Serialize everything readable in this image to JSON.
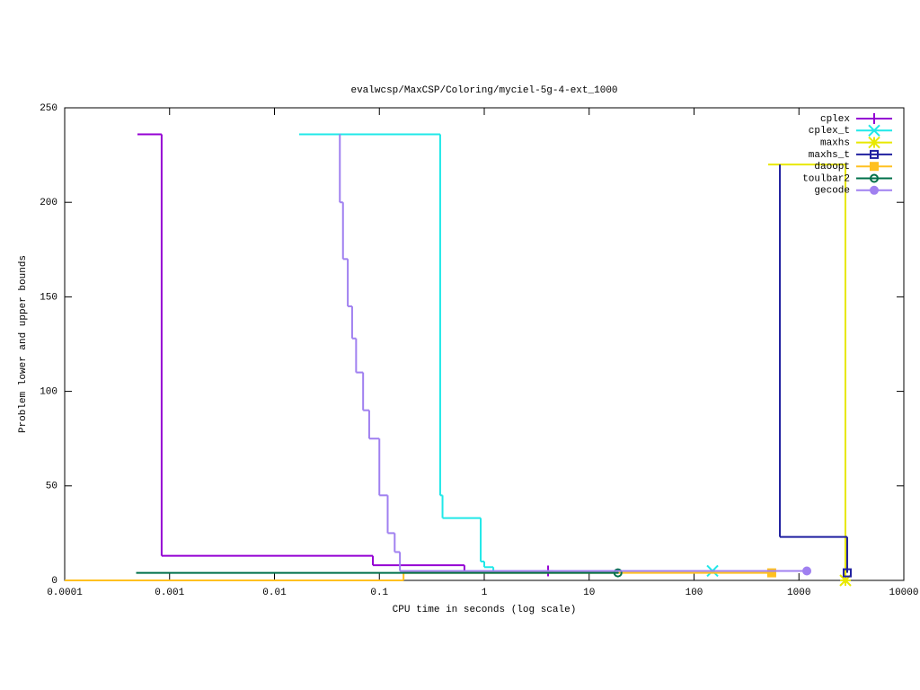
{
  "chart_data": {
    "type": "line",
    "drawstyle": "steps",
    "xscale": "log",
    "title": "evalwcsp/MaxCSP/Coloring/myciel-5g-4-ext_1000",
    "xlabel": "CPU time in seconds (log scale)",
    "ylabel": "Problem lower and upper bounds",
    "xlim": [
      0.0001,
      10000
    ],
    "xticks": [
      0.0001,
      0.001,
      0.01,
      0.1,
      1,
      10,
      100,
      1000,
      10000
    ],
    "ylim": [
      0,
      250
    ],
    "yticks": [
      0,
      50,
      100,
      150,
      200,
      250
    ],
    "legend": "upper right",
    "series": [
      {
        "name": "cplex",
        "color": "#9400d3",
        "marker": "plus",
        "x": [
          0.000494,
          0.00084,
          0.0867,
          0.647,
          4.06
        ],
        "values": [
          236,
          13,
          8,
          5,
          5
        ]
      },
      {
        "name": "cplex_t",
        "color": "#20e8e8",
        "marker": "cross",
        "x": [
          0.0172,
          0.38,
          0.4,
          0.925,
          1.0,
          1.22,
          150
        ],
        "values": [
          236,
          45,
          33,
          10,
          7,
          5,
          5
        ]
      },
      {
        "name": "maxhs",
        "color": "#e8e800",
        "marker": "star",
        "x": [
          509,
          2775
        ],
        "values": [
          220,
          0
        ]
      },
      {
        "name": "maxhs_t",
        "color": "#2020a0",
        "marker": "open-square",
        "x": [
          658,
          658,
          2885
        ],
        "values": [
          220,
          23,
          4
        ]
      },
      {
        "name": "daoopt",
        "color": "#ffc020",
        "marker": "filled-square",
        "x": [
          0.0001,
          0.17,
          550
        ],
        "values": [
          0,
          4,
          4
        ]
      },
      {
        "name": "toulbar2",
        "color": "#00704a",
        "marker": "open-circle",
        "x": [
          0.00048,
          18.8
        ],
        "values": [
          4,
          4
        ]
      },
      {
        "name": "gecode",
        "color": "#a080f0",
        "marker": "filled-circle",
        "x": [
          0.0418,
          0.042,
          0.045,
          0.05,
          0.055,
          0.06,
          0.07,
          0.08,
          0.1,
          0.12,
          0.14,
          0.157,
          1189
        ],
        "values": [
          236,
          200,
          170,
          145,
          128,
          110,
          90,
          75,
          45,
          25,
          15,
          5,
          5
        ]
      }
    ]
  }
}
